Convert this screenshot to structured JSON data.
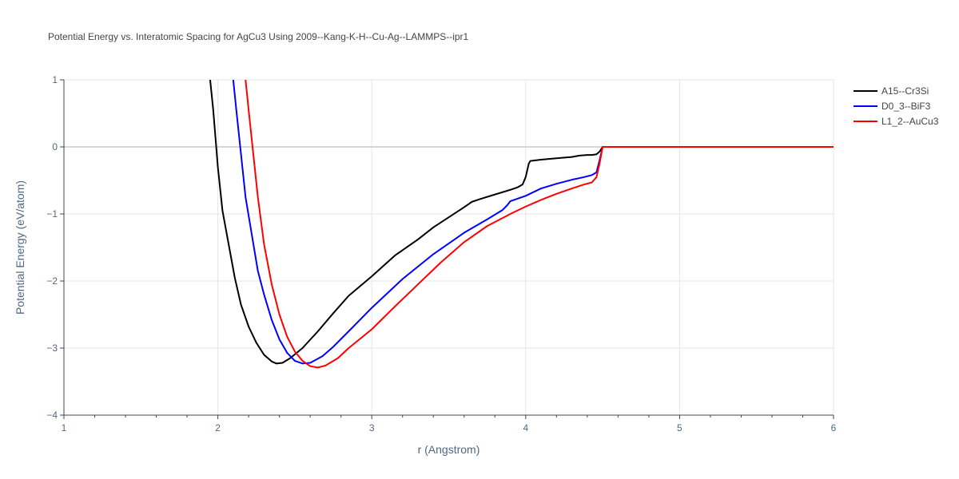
{
  "chart_data": {
    "type": "line",
    "title": "Potential Energy vs. Interatomic Spacing for AgCu3 Using 2009--Kang-K-H--Cu-Ag--LAMMPS--ipr1",
    "xlabel": "r (Angstrom)",
    "ylabel": "Potential Energy (eV/atom)",
    "xlim": [
      1,
      6
    ],
    "ylim": [
      -4,
      1
    ],
    "xticks": [
      1,
      2,
      3,
      4,
      5,
      6
    ],
    "xtick_labels": [
      "1",
      "2",
      "3",
      "4",
      "5",
      "6"
    ],
    "yticks": [
      1,
      0,
      -1,
      -2,
      -3,
      -4
    ],
    "ytick_labels": [
      "1",
      "0",
      "−1",
      "−2",
      "−3",
      "−4"
    ],
    "grid": true,
    "legend_position": "top-right",
    "series": [
      {
        "name": "A15--Cr3Si",
        "color": "#000000",
        "x": [
          1.95,
          1.97,
          2.0,
          2.03,
          2.07,
          2.11,
          2.15,
          2.2,
          2.25,
          2.3,
          2.35,
          2.38,
          2.42,
          2.47,
          2.55,
          2.65,
          2.75,
          2.85,
          3.0,
          3.15,
          3.3,
          3.4,
          3.5,
          3.6,
          3.65,
          3.7,
          3.8,
          3.9,
          3.95,
          3.98,
          4.0,
          4.02,
          4.03,
          4.1,
          4.2,
          4.3,
          4.35,
          4.4,
          4.43,
          4.46,
          4.48,
          4.5,
          4.6,
          5.0,
          5.5,
          6.0
        ],
        "y": [
          1.0,
          0.55,
          -0.3,
          -0.95,
          -1.45,
          -1.95,
          -2.35,
          -2.68,
          -2.92,
          -3.1,
          -3.2,
          -3.23,
          -3.22,
          -3.15,
          -3.0,
          -2.75,
          -2.48,
          -2.22,
          -1.93,
          -1.62,
          -1.38,
          -1.2,
          -1.05,
          -0.9,
          -0.82,
          -0.78,
          -0.71,
          -0.64,
          -0.6,
          -0.56,
          -0.45,
          -0.25,
          -0.21,
          -0.19,
          -0.17,
          -0.15,
          -0.13,
          -0.12,
          -0.12,
          -0.11,
          -0.07,
          0.0,
          0.0,
          0.0,
          0.0,
          0.0
        ]
      },
      {
        "name": "D0_3--BiF3",
        "color": "#0000ff",
        "x": [
          2.1,
          2.12,
          2.15,
          2.18,
          2.22,
          2.26,
          2.3,
          2.35,
          2.4,
          2.45,
          2.5,
          2.55,
          2.6,
          2.68,
          2.75,
          2.85,
          3.0,
          3.2,
          3.4,
          3.6,
          3.75,
          3.85,
          3.88,
          3.9,
          4.0,
          4.1,
          4.2,
          4.3,
          4.38,
          4.43,
          4.46,
          4.48,
          4.5,
          4.6,
          5.0,
          5.5,
          6.0
        ],
        "y": [
          1.0,
          0.55,
          -0.1,
          -0.75,
          -1.3,
          -1.85,
          -2.2,
          -2.58,
          -2.87,
          -3.07,
          -3.19,
          -3.23,
          -3.22,
          -3.12,
          -2.98,
          -2.75,
          -2.4,
          -1.97,
          -1.6,
          -1.28,
          -1.08,
          -0.94,
          -0.87,
          -0.81,
          -0.73,
          -0.62,
          -0.55,
          -0.49,
          -0.45,
          -0.42,
          -0.38,
          -0.2,
          0.0,
          0.0,
          0.0,
          0.0,
          0.0
        ]
      },
      {
        "name": "L1_2--AuCu3",
        "color": "#ff0000",
        "x": [
          2.18,
          2.2,
          2.23,
          2.26,
          2.3,
          2.35,
          2.4,
          2.45,
          2.5,
          2.55,
          2.6,
          2.65,
          2.7,
          2.78,
          2.85,
          3.0,
          3.15,
          3.3,
          3.45,
          3.6,
          3.75,
          3.9,
          4.0,
          4.1,
          4.2,
          4.3,
          4.38,
          4.43,
          4.46,
          4.48,
          4.5,
          4.6,
          5.0,
          5.5,
          6.0
        ],
        "y": [
          1.0,
          0.55,
          -0.1,
          -0.75,
          -1.45,
          -2.05,
          -2.5,
          -2.83,
          -3.05,
          -3.19,
          -3.27,
          -3.29,
          -3.26,
          -3.15,
          -3.0,
          -2.72,
          -2.38,
          -2.05,
          -1.72,
          -1.42,
          -1.18,
          -1.0,
          -0.89,
          -0.79,
          -0.7,
          -0.62,
          -0.56,
          -0.53,
          -0.45,
          -0.25,
          0.0,
          0.0,
          0.0,
          0.0,
          0.0
        ]
      }
    ]
  }
}
